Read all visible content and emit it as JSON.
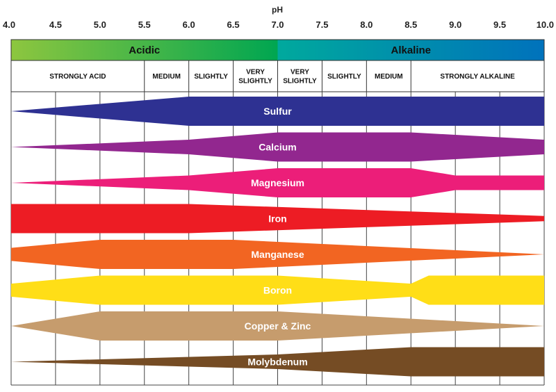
{
  "chart_data": {
    "type": "area",
    "xlabel": "pH",
    "xlim": [
      4.0,
      10.0
    ],
    "ticks": [
      "4.0",
      "4.5",
      "5.0",
      "5.5",
      "6.0",
      "6.5",
      "7.0",
      "7.5",
      "8.0",
      "8.5",
      "9.0",
      "9.5",
      "10.0"
    ],
    "zones": [
      {
        "label": "Acidic",
        "from": 4.0,
        "to": 7.0,
        "color_start": "#8dc63f",
        "color_end": "#00a651"
      },
      {
        "label": "Alkaline",
        "from": 7.0,
        "to": 10.0,
        "color_start": "#00a99d",
        "color_end": "#0072bc"
      }
    ],
    "descriptors": [
      {
        "lines": [
          "STRONGLY ACID"
        ],
        "from": 4.0,
        "to": 5.5
      },
      {
        "lines": [
          "MEDIUM"
        ],
        "from": 5.5,
        "to": 6.0
      },
      {
        "lines": [
          "SLIGHTLY"
        ],
        "from": 6.0,
        "to": 6.5
      },
      {
        "lines": [
          "VERY",
          "SLIGHTLY"
        ],
        "from": 6.5,
        "to": 7.0
      },
      {
        "lines": [
          "VERY",
          "SLIGHTLY"
        ],
        "from": 7.0,
        "to": 7.5
      },
      {
        "lines": [
          "SLIGHTLY"
        ],
        "from": 7.5,
        "to": 8.0
      },
      {
        "lines": [
          "MEDIUM"
        ],
        "from": 8.0,
        "to": 8.5
      },
      {
        "lines": [
          "STRONGLY ALKALINE"
        ],
        "from": 8.5,
        "to": 10.0
      }
    ],
    "series": [
      {
        "name": "Sulfur",
        "color": "#2e3192",
        "profile": [
          [
            4.0,
            0.0
          ],
          [
            6.0,
            1.0
          ],
          [
            10.0,
            1.0
          ]
        ]
      },
      {
        "name": "Calcium",
        "color": "#92278f",
        "profile": [
          [
            4.0,
            0.0
          ],
          [
            6.0,
            0.5
          ],
          [
            7.0,
            1.0
          ],
          [
            8.5,
            1.0
          ],
          [
            10.0,
            0.5
          ]
        ]
      },
      {
        "name": "Magnesium",
        "color": "#ec1e79",
        "profile": [
          [
            4.0,
            0.0
          ],
          [
            6.0,
            0.5
          ],
          [
            7.0,
            1.0
          ],
          [
            8.5,
            1.0
          ],
          [
            9.0,
            0.5
          ],
          [
            10.0,
            0.5
          ]
        ]
      },
      {
        "name": "Iron",
        "color": "#ed1c24",
        "profile": [
          [
            4.0,
            1.0
          ],
          [
            6.0,
            1.0
          ],
          [
            10.0,
            0.18
          ]
        ]
      },
      {
        "name": "Manganese",
        "color": "#f26522",
        "profile": [
          [
            4.0,
            0.45
          ],
          [
            5.0,
            1.0
          ],
          [
            6.5,
            1.0
          ],
          [
            10.0,
            0.0
          ]
        ]
      },
      {
        "name": "Boron",
        "color": "#ffde17",
        "profile": [
          [
            4.0,
            0.45
          ],
          [
            5.0,
            1.0
          ],
          [
            7.0,
            1.0
          ],
          [
            8.5,
            0.45
          ],
          [
            8.7,
            1.0
          ],
          [
            10.0,
            1.0
          ]
        ]
      },
      {
        "name": "Copper & Zinc",
        "color": "#c69c6d",
        "profile": [
          [
            4.0,
            0.0
          ],
          [
            5.0,
            1.0
          ],
          [
            7.0,
            1.0
          ],
          [
            10.0,
            0.0
          ]
        ]
      },
      {
        "name": "Molybdenum",
        "color": "#754c24",
        "profile": [
          [
            4.0,
            0.0
          ],
          [
            7.0,
            0.5
          ],
          [
            8.5,
            1.0
          ],
          [
            10.0,
            1.0
          ]
        ]
      }
    ]
  }
}
